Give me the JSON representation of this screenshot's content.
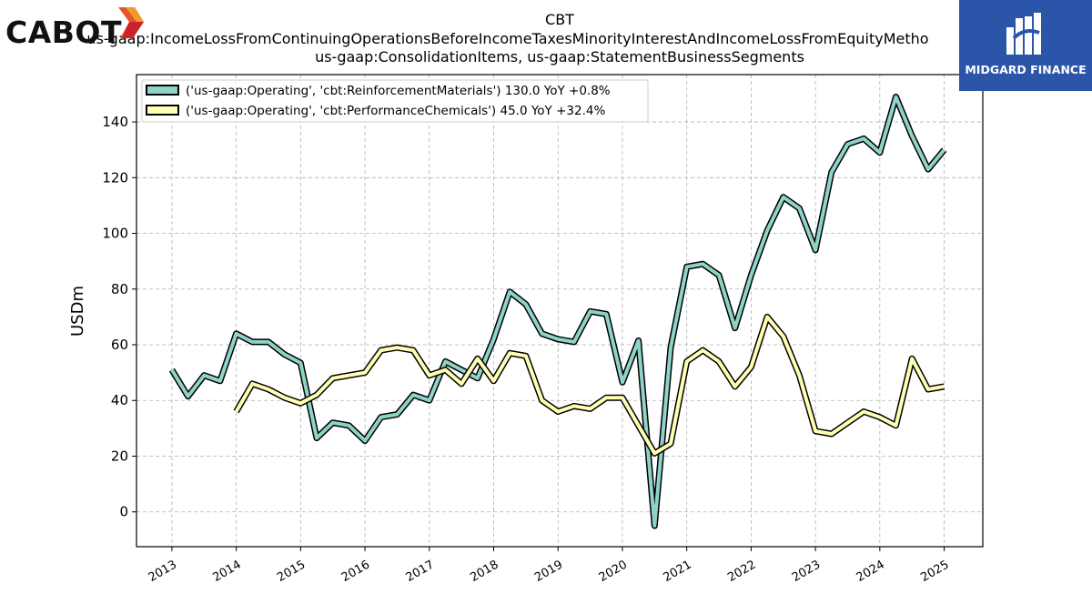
{
  "logos": {
    "left_text": "CABOT",
    "right_text": "MIDGARD FINANCE",
    "right_bg": "#2a55a8"
  },
  "chart_data": {
    "type": "line",
    "title": "CBT",
    "subtitle_lines": [
      "us-gaap:IncomeLossFromContinuingOperationsBeforeIncomeTaxesMinorityInterestAndIncomeLossFromEquityMetho",
      "us-gaap:ConsolidationItems, us-gaap:StatementBusinessSegments"
    ],
    "xlabel": "",
    "ylabel": "USDm",
    "xlim": [
      2012.45,
      2025.6
    ],
    "ylim": [
      -12.5,
      157
    ],
    "x_ticks": [
      2013,
      2014,
      2015,
      2016,
      2017,
      2018,
      2019,
      2020,
      2021,
      2022,
      2023,
      2024,
      2025
    ],
    "x_tick_labels": [
      "2013",
      "2014",
      "2015",
      "2016",
      "2017",
      "2018",
      "2019",
      "2020",
      "2021",
      "2022",
      "2023",
      "2024",
      "2025"
    ],
    "y_ticks": [
      0,
      20,
      40,
      60,
      80,
      100,
      120,
      140
    ],
    "y_tick_labels": [
      "0",
      "20",
      "40",
      "60",
      "80",
      "100",
      "120",
      "140"
    ],
    "grid": true,
    "legend_position": "top-left",
    "series": [
      {
        "name": "('us-gaap:Operating', 'cbt:ReinforcementMaterials') 130.0 YoY +0.8%",
        "color": "#8dd3c7",
        "points": [
          [
            2013.0,
            51
          ],
          [
            2013.25,
            41.5
          ],
          [
            2013.5,
            49
          ],
          [
            2013.75,
            47
          ],
          [
            2014.0,
            64
          ],
          [
            2014.25,
            61
          ],
          [
            2014.5,
            61
          ],
          [
            2014.75,
            56.5
          ],
          [
            2015.0,
            53.5
          ],
          [
            2015.25,
            26.5
          ],
          [
            2015.5,
            32
          ],
          [
            2015.75,
            31
          ],
          [
            2016.0,
            25.5
          ],
          [
            2016.25,
            34
          ],
          [
            2016.5,
            35
          ],
          [
            2016.75,
            42
          ],
          [
            2017.0,
            40
          ],
          [
            2017.25,
            54
          ],
          [
            2017.5,
            51
          ],
          [
            2017.75,
            48
          ],
          [
            2018.0,
            62
          ],
          [
            2018.25,
            79
          ],
          [
            2018.5,
            74.5
          ],
          [
            2018.75,
            64
          ],
          [
            2019.0,
            62
          ],
          [
            2019.25,
            61
          ],
          [
            2019.5,
            72
          ],
          [
            2019.75,
            71
          ],
          [
            2020.0,
            46.5
          ],
          [
            2020.25,
            61.5
          ],
          [
            2020.5,
            -5
          ],
          [
            2020.75,
            59
          ],
          [
            2021.0,
            88
          ],
          [
            2021.25,
            89
          ],
          [
            2021.5,
            85
          ],
          [
            2021.75,
            66
          ],
          [
            2022.0,
            85
          ],
          [
            2022.25,
            101
          ],
          [
            2022.5,
            113
          ],
          [
            2022.75,
            109
          ],
          [
            2023.0,
            94
          ],
          [
            2023.25,
            122
          ],
          [
            2023.5,
            132
          ],
          [
            2023.75,
            134
          ],
          [
            2024.0,
            129
          ],
          [
            2024.25,
            149
          ],
          [
            2024.5,
            135
          ],
          [
            2024.75,
            123
          ],
          [
            2025.0,
            130
          ]
        ]
      },
      {
        "name": "('us-gaap:Operating', 'cbt:PerformanceChemicals') 45.0 YoY +32.4%",
        "color": "#ffffb3",
        "points": [
          [
            2014.0,
            36
          ],
          [
            2014.25,
            46
          ],
          [
            2014.5,
            44
          ],
          [
            2014.75,
            41
          ],
          [
            2015.0,
            39
          ],
          [
            2015.25,
            42
          ],
          [
            2015.5,
            48
          ],
          [
            2015.75,
            49
          ],
          [
            2016.0,
            50
          ],
          [
            2016.25,
            58
          ],
          [
            2016.5,
            59
          ],
          [
            2016.75,
            58
          ],
          [
            2017.0,
            49
          ],
          [
            2017.25,
            51
          ],
          [
            2017.5,
            46
          ],
          [
            2017.75,
            55
          ],
          [
            2018.0,
            47
          ],
          [
            2018.25,
            57
          ],
          [
            2018.5,
            56
          ],
          [
            2018.75,
            40
          ],
          [
            2019.0,
            36
          ],
          [
            2019.25,
            38
          ],
          [
            2019.5,
            37
          ],
          [
            2019.75,
            41
          ],
          [
            2020.0,
            41
          ],
          [
            2020.25,
            31
          ],
          [
            2020.5,
            21
          ],
          [
            2020.75,
            24.5
          ],
          [
            2021.0,
            54
          ],
          [
            2021.25,
            58
          ],
          [
            2021.5,
            54
          ],
          [
            2021.75,
            45
          ],
          [
            2022.0,
            52
          ],
          [
            2022.25,
            70
          ],
          [
            2022.5,
            63
          ],
          [
            2022.75,
            49
          ],
          [
            2023.0,
            29
          ],
          [
            2023.25,
            28
          ],
          [
            2023.5,
            32
          ],
          [
            2023.75,
            36
          ],
          [
            2024.0,
            34
          ],
          [
            2024.25,
            31
          ],
          [
            2024.5,
            55
          ],
          [
            2024.75,
            44
          ],
          [
            2025.0,
            45
          ]
        ]
      }
    ]
  }
}
